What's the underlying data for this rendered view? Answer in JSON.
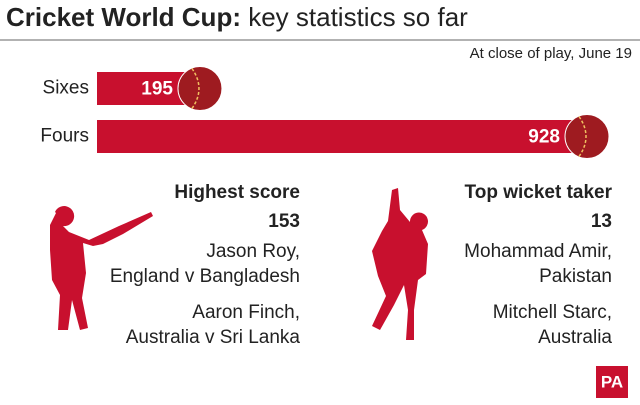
{
  "chart_data": {
    "type": "bar",
    "title": "Cricket World Cup:",
    "subtitle": "key statistics so far",
    "note": "At close of play, June 19",
    "categories": [
      "Sixes",
      "Fours"
    ],
    "values": [
      195,
      928
    ],
    "color": "#c8102e"
  },
  "highest_score": {
    "heading": "Highest score",
    "value": 153,
    "players": [
      [
        "Jason Roy,",
        "England v Bangladesh"
      ],
      [
        "Aaron Finch,",
        "Australia v Sri Lanka"
      ]
    ]
  },
  "top_wicket_taker": {
    "heading": "Top wicket taker",
    "value": 13,
    "players": [
      [
        "Mohammad Amir,",
        "Pakistan"
      ],
      [
        "Mitchell Starc,",
        "Australia"
      ]
    ]
  },
  "logo": "PA"
}
